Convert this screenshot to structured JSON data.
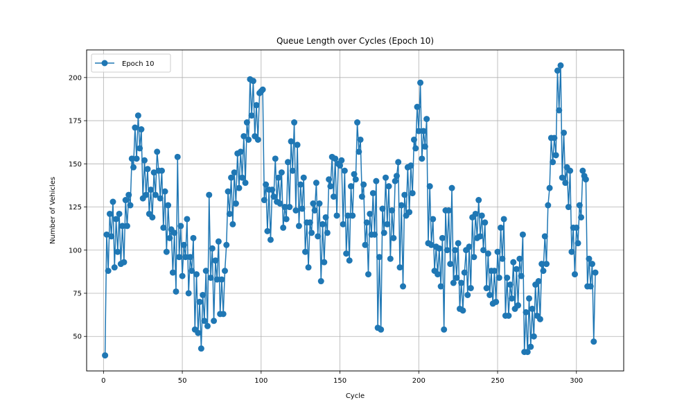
{
  "chart_data": {
    "type": "line",
    "title": "Queue Length over Cycles (Epoch 10)",
    "xlabel": "Cycle",
    "ylabel": "Number of Vehicles",
    "xlim": [
      -10.7,
      330
    ],
    "ylim": [
      30,
      216
    ],
    "xticks": [
      0,
      50,
      100,
      150,
      200,
      250,
      300
    ],
    "yticks": [
      50,
      75,
      100,
      125,
      150,
      175,
      200
    ],
    "grid": true,
    "legend_position": "upper-left",
    "color": "#1f77b4",
    "series": [
      {
        "name": "Epoch 10",
        "marker": "circle",
        "x_start": 1,
        "values": [
          39,
          109,
          88,
          121,
          108,
          128,
          90,
          118,
          99,
          121,
          92,
          114,
          93,
          129,
          114,
          132,
          126,
          153,
          148,
          171,
          153,
          178,
          159,
          170,
          130,
          152,
          132,
          147,
          121,
          135,
          119,
          145,
          132,
          157,
          146,
          130,
          146,
          113,
          134,
          99,
          126,
          107,
          112,
          87,
          110,
          76,
          154,
          96,
          114,
          85,
          103,
          96,
          118,
          75,
          96,
          88,
          107,
          54,
          86,
          52,
          70,
          43,
          74,
          59,
          88,
          56,
          132,
          84,
          101,
          59,
          94,
          83,
          105,
          63,
          83,
          63,
          88,
          103,
          134,
          121,
          142,
          115,
          145,
          127,
          156,
          136,
          157,
          142,
          166,
          139,
          174,
          164,
          199,
          178,
          198,
          166,
          184,
          164,
          191,
          192,
          193,
          129,
          138,
          111,
          135,
          106,
          135,
          131,
          153,
          128,
          142,
          127,
          145,
          113,
          125,
          118,
          151,
          125,
          163,
          146,
          174,
          123,
          161,
          114,
          138,
          124,
          142,
          99,
          116,
          90,
          116,
          110,
          127,
          123,
          139,
          108,
          127,
          82,
          115,
          93,
          119,
          110,
          141,
          137,
          154,
          131,
          153,
          120,
          150,
          149,
          152,
          115,
          146,
          98,
          120,
          94,
          137,
          120,
          144,
          141,
          174,
          157,
          164,
          131,
          138,
          103,
          116,
          86,
          121,
          109,
          133,
          109,
          140,
          55,
          96,
          54,
          124,
          110,
          142,
          115,
          137,
          95,
          123,
          107,
          140,
          143,
          151,
          90,
          126,
          79,
          132,
          120,
          148,
          122,
          149,
          133,
          164,
          159,
          183,
          169,
          197,
          153,
          169,
          160,
          176,
          104,
          137,
          103,
          118,
          88,
          102,
          86,
          101,
          79,
          107,
          54,
          123,
          100,
          123,
          92,
          136,
          81,
          100,
          84,
          104,
          66,
          81,
          65,
          87,
          100,
          74,
          102,
          78,
          119,
          96,
          121,
          107,
          129,
          108,
          120,
          100,
          116,
          78,
          98,
          74,
          88,
          69,
          88,
          70,
          99,
          84,
          113,
          95,
          118,
          62,
          84,
          62,
          80,
          72,
          93,
          66,
          89,
          68,
          95,
          85,
          109,
          41,
          64,
          41,
          72,
          44,
          66,
          50,
          80,
          62,
          82,
          60,
          92,
          88,
          108,
          92,
          126,
          136,
          165,
          151,
          165,
          155,
          204,
          181,
          207,
          142,
          168,
          139,
          148,
          125,
          146,
          99,
          113,
          86,
          113,
          104,
          126,
          119,
          146,
          143,
          141,
          79,
          95,
          79,
          92,
          47,
          87
        ]
      }
    ]
  }
}
